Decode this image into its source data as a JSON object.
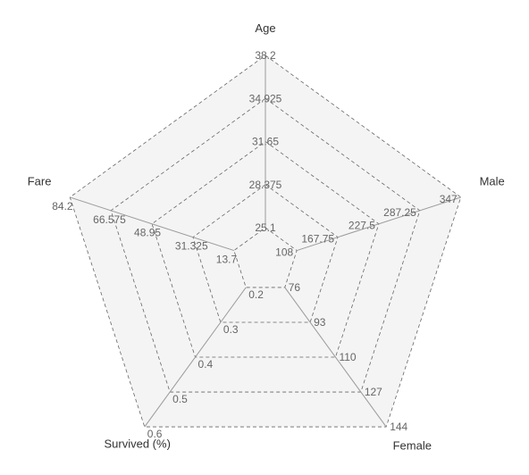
{
  "chart_data": {
    "type": "radar",
    "axes": [
      {
        "name": "Age",
        "ticks": [
          "25.1",
          "28.375",
          "31.65",
          "34.925",
          "38.2"
        ]
      },
      {
        "name": "Male",
        "ticks": [
          "108",
          "167.75",
          "227.5",
          "287.25",
          "347"
        ]
      },
      {
        "name": "Female",
        "ticks": [
          "76",
          "93",
          "110",
          "127",
          "144"
        ]
      },
      {
        "name": "Survived (%)",
        "ticks": [
          "0.2",
          "0.3",
          "0.4",
          "0.5",
          "0.6"
        ]
      },
      {
        "name": "Fare",
        "ticks": [
          "13.7",
          "31.325",
          "48.95",
          "66.575",
          "84.2"
        ]
      }
    ],
    "rings": 5,
    "grid": true,
    "grid_style": "dashed",
    "legend": "none",
    "colors": {
      "grid": "#666666",
      "fill": "#f4f4f4",
      "axis": "#9a9a9a",
      "text": "#666666"
    }
  }
}
